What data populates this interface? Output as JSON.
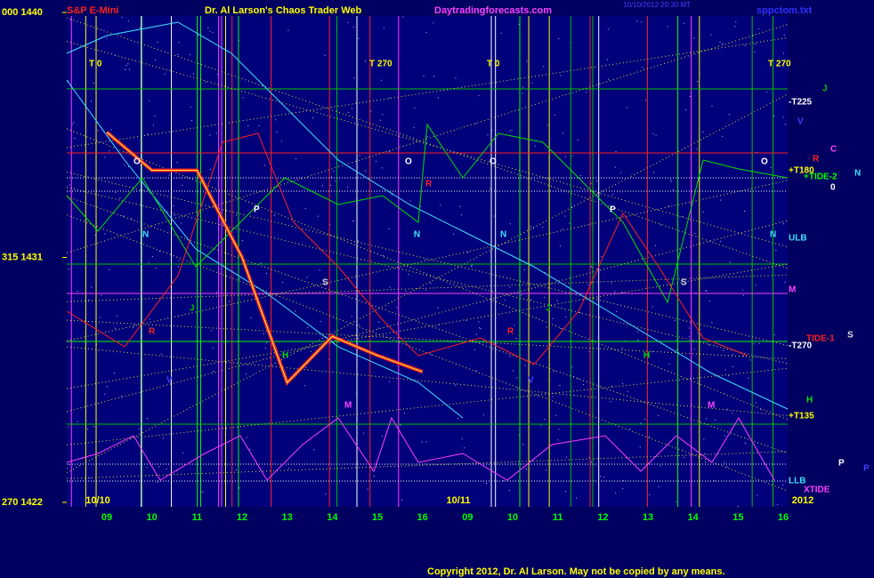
{
  "chart_data": {
    "type": "line",
    "title": "Dr. Al Larson's Chaos Trader Web",
    "symbol": "S&P E-Mini",
    "site": "Daytradingforecasts.com",
    "file": "sppctom.txt",
    "timestamp": "10/10/2012 20:30 MT",
    "copyright": "Copyright 2012, Dr. Al Larson. May not be copied by any means.",
    "dates": [
      "10/10",
      "10/11",
      "2012"
    ],
    "categories": [
      "09",
      "10",
      "11",
      "12",
      "13",
      "14",
      "15",
      "16",
      "09",
      "10",
      "11",
      "12",
      "13",
      "14",
      "15",
      "16"
    ],
    "series": [
      {
        "name": "S&P E-Mini",
        "color": "#ff2020",
        "values": [
          1435.6,
          1434.2,
          1434.2,
          1431.0,
          1426.4,
          1428.1,
          1427.4,
          1426.8,
          null,
          null,
          null,
          null,
          null,
          null,
          null,
          null
        ]
      }
    ],
    "ylim": [
      1422,
      1440
    ],
    "yticks": [
      {
        "value": 1440,
        "label": "000 1440"
      },
      {
        "value": 1431,
        "label": "315 1431"
      },
      {
        "value": 1422,
        "label": "270 1422"
      }
    ],
    "annotations": [
      "T  0",
      "T  270",
      "T  0",
      "T  270",
      "O",
      "O",
      "O",
      "O",
      "N",
      "N",
      "N",
      "N",
      "P",
      "P",
      "S",
      "S",
      "H",
      "H",
      "H",
      "M",
      "M",
      "M",
      "V",
      "V",
      "V",
      "R",
      "R",
      "R",
      "J",
      "J",
      "J",
      "-T225",
      "+T180",
      "+TIDE-2",
      "0",
      "N",
      "C",
      "R",
      "ULB",
      "TIDE-1",
      "S",
      "-T270",
      "+T135",
      "LLB",
      "XTIDE",
      "P",
      "P"
    ]
  }
}
